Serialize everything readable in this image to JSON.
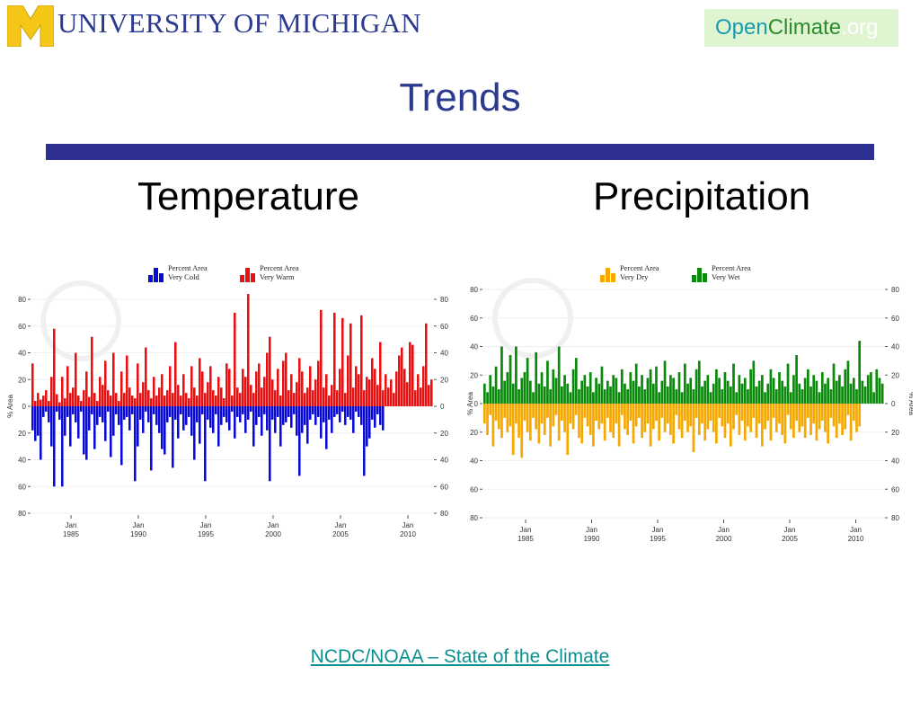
{
  "header": {
    "logo_block_letter": "M",
    "university_name": "UNIVERSITY OF MICHIGAN",
    "partner_logo": {
      "open": "Open",
      "climate": "Climate",
      "org": ".org"
    }
  },
  "slide": {
    "title": "Trends",
    "left_heading": "Temperature",
    "right_heading": "Precipitation",
    "footer_link": "NCDC/NOAA – State of the Climate"
  },
  "colors": {
    "title": "#2b3a8f",
    "bar": "#2e3192",
    "maize": "#f5c518",
    "very_cold": "#0a0ad8",
    "very_warm": "#e81010",
    "very_dry": "#f5a800",
    "very_wet": "#0a8a0a"
  },
  "chart_data": [
    {
      "type": "bar",
      "xlabel": "",
      "ylabel": "% Area",
      "ylim": [
        -80,
        80
      ],
      "legend_position": "top",
      "x_ticks": [
        "Jan 1985",
        "Jan 1990",
        "Jan 1995",
        "Jan 2000",
        "Jan 2005",
        "Jan 2010"
      ],
      "y_ticks": [
        80,
        60,
        40,
        20,
        0,
        20,
        40,
        60,
        80
      ],
      "series": [
        {
          "name": "Percent Area Very Warm",
          "color": "#e81010",
          "direction": "up",
          "values": [
            32,
            4,
            10,
            5,
            8,
            12,
            4,
            22,
            58,
            9,
            3,
            22,
            6,
            30,
            10,
            14,
            40,
            8,
            4,
            12,
            26,
            7,
            52,
            10,
            4,
            22,
            16,
            34,
            12,
            8,
            40,
            10,
            4,
            26,
            10,
            38,
            14,
            8,
            6,
            32,
            10,
            18,
            44,
            12,
            6,
            22,
            8,
            14,
            24,
            8,
            12,
            30,
            10,
            48,
            16,
            8,
            24,
            10,
            6,
            30,
            14,
            8,
            36,
            26,
            10,
            18,
            30,
            12,
            8,
            22,
            14,
            6,
            32,
            28,
            8,
            70,
            14,
            10,
            28,
            22,
            84,
            16,
            10,
            26,
            32,
            14,
            22,
            40,
            52,
            20,
            12,
            28,
            8,
            34,
            40,
            12,
            24,
            10,
            18,
            36,
            26,
            10,
            14,
            30,
            12,
            20,
            34,
            72,
            14,
            24,
            8,
            16,
            70,
            12,
            28,
            66,
            10,
            38,
            62,
            14,
            30,
            24,
            68,
            12,
            22,
            20,
            36,
            28,
            16,
            48,
            12,
            24,
            14,
            20,
            10,
            26,
            38,
            44,
            28,
            18,
            48,
            46,
            12,
            24,
            14,
            30,
            62,
            16,
            20
          ]
        },
        {
          "name": "Percent Area Very Cold",
          "color": "#0a0ad8",
          "direction": "down",
          "values": [
            18,
            26,
            22,
            40,
            8,
            4,
            12,
            30,
            60,
            4,
            10,
            60,
            22,
            8,
            30,
            6,
            12,
            24,
            4,
            36,
            40,
            18,
            6,
            32,
            14,
            8,
            12,
            26,
            4,
            38,
            22,
            6,
            14,
            44,
            10,
            8,
            18,
            6,
            56,
            30,
            10,
            20,
            4,
            12,
            48,
            6,
            14,
            20,
            32,
            36,
            12,
            8,
            46,
            10,
            24,
            6,
            18,
            14,
            8,
            22,
            40,
            12,
            28,
            6,
            56,
            10,
            16,
            20,
            6,
            30,
            14,
            8,
            12,
            18,
            4,
            24,
            8,
            12,
            6,
            20,
            10,
            4,
            30,
            14,
            8,
            22,
            6,
            18,
            56,
            10,
            20,
            8,
            30,
            14,
            12,
            8,
            16,
            6,
            22,
            52,
            20,
            14,
            28,
            10,
            6,
            14,
            8,
            24,
            12,
            32,
            10,
            20,
            8,
            6,
            12,
            4,
            14,
            8,
            10,
            20,
            4,
            8,
            14,
            52,
            30,
            24,
            10,
            16,
            6,
            14,
            18
          ]
        }
      ]
    },
    {
      "type": "bar",
      "xlabel": "",
      "ylabel": "% Area",
      "ylim": [
        -80,
        80
      ],
      "legend_position": "top",
      "x_ticks": [
        "Jan 1985",
        "Jan 1990",
        "Jan 1995",
        "Jan 2000",
        "Jan 2005",
        "Jan 2010"
      ],
      "y_ticks": [
        80,
        60,
        40,
        20,
        0,
        20,
        40,
        60,
        80
      ],
      "series": [
        {
          "name": "Percent Area Very Wet",
          "color": "#0a8a0a",
          "direction": "up",
          "values": [
            14,
            8,
            20,
            12,
            26,
            10,
            40,
            16,
            22,
            34,
            14,
            40,
            10,
            18,
            22,
            32,
            16,
            8,
            36,
            14,
            22,
            12,
            30,
            10,
            24,
            18,
            40,
            12,
            20,
            14,
            8,
            24,
            32,
            10,
            16,
            20,
            12,
            22,
            8,
            18,
            14,
            26,
            10,
            16,
            12,
            20,
            18,
            8,
            24,
            14,
            10,
            22,
            16,
            28,
            12,
            20,
            10,
            18,
            24,
            14,
            26,
            8,
            16,
            30,
            12,
            20,
            18,
            10,
            22,
            8,
            28,
            14,
            18,
            10,
            24,
            30,
            12,
            16,
            20,
            8,
            14,
            24,
            18,
            10,
            22,
            16,
            12,
            28,
            8,
            20,
            14,
            18,
            10,
            24,
            30,
            12,
            16,
            20,
            8,
            14,
            24,
            18,
            10,
            22,
            16,
            12,
            28,
            8,
            20,
            34,
            14,
            10,
            18,
            24,
            12,
            20,
            16,
            8,
            22,
            14,
            18,
            10,
            28,
            16,
            20,
            12,
            24,
            30,
            14,
            18,
            10,
            44,
            16,
            12,
            20,
            22,
            8,
            24,
            18,
            14
          ]
        },
        {
          "name": "Percent Area Very Dry",
          "color": "#f5a800",
          "direction": "down",
          "values": [
            14,
            22,
            8,
            30,
            12,
            18,
            24,
            10,
            20,
            16,
            36,
            14,
            24,
            38,
            12,
            20,
            26,
            10,
            18,
            28,
            14,
            22,
            10,
            30,
            16,
            8,
            26,
            12,
            20,
            36,
            14,
            18,
            8,
            24,
            28,
            10,
            16,
            22,
            30,
            12,
            18,
            14,
            26,
            10,
            20,
            24,
            14,
            30,
            8,
            18,
            22,
            12,
            28,
            16,
            10,
            24,
            20,
            14,
            30,
            18,
            12,
            26,
            10,
            20,
            14,
            22,
            28,
            8,
            18,
            24,
            12,
            20,
            16,
            34,
            10,
            22,
            14,
            26,
            18,
            12,
            20,
            28,
            10,
            16,
            24,
            14,
            30,
            18,
            8,
            22,
            12,
            26,
            16,
            20,
            10,
            24,
            14,
            30,
            18,
            12,
            26,
            10,
            20,
            14,
            22,
            28,
            8,
            18,
            24,
            12,
            20,
            16,
            24,
            10,
            22,
            14,
            26,
            18,
            12,
            20,
            28,
            10,
            16,
            24,
            14,
            22,
            18,
            8,
            26,
            12,
            20,
            16
          ]
        }
      ]
    }
  ]
}
